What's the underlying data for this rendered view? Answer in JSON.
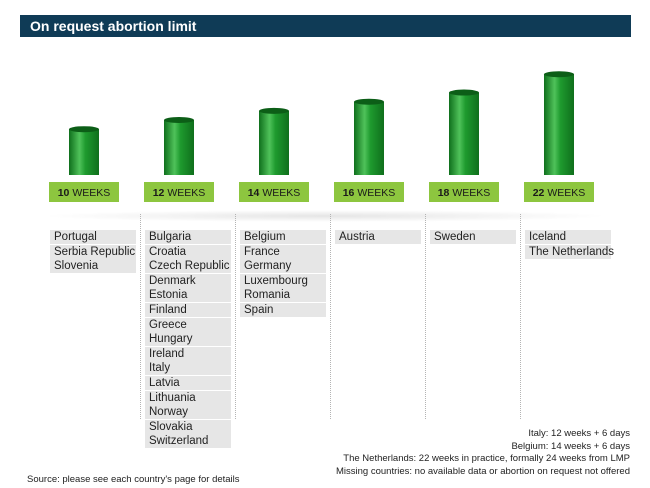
{
  "title": "On request abortion limit",
  "chart_data": {
    "type": "bar",
    "unit": "WEEKS",
    "categories": [
      "10 WEEKS",
      "12 WEEKS",
      "14 WEEKS",
      "16 WEEKS",
      "18 WEEKS",
      "22 WEEKS"
    ],
    "values": [
      10,
      12,
      14,
      16,
      18,
      22
    ],
    "value_labels": [
      "10",
      "12",
      "14",
      "16",
      "18",
      "22"
    ],
    "colors": {
      "bar": "#1e9a2e",
      "bar_light": "#4fc25a",
      "bar_dark": "#0f6f1c",
      "label_bg": "#8dc63f"
    }
  },
  "groups": [
    {
      "countries": [
        "Portugal",
        "Serbia Republic",
        "Slovenia"
      ]
    },
    {
      "countries": [
        "Bulgaria",
        "Croatia",
        "Czech Republic",
        "Denmark",
        "Estonia",
        "Finland",
        "Greece",
        "Hungary",
        "Ireland",
        "Italy",
        "Latvia",
        "Lithuania",
        "Norway",
        "Slovakia",
        "Switzerland"
      ]
    },
    {
      "countries": [
        "Belgium",
        "France",
        "Germany",
        "Luxembourg",
        "Romania",
        "Spain"
      ]
    },
    {
      "countries": [
        "Austria"
      ]
    },
    {
      "countries": [
        "Sweden"
      ]
    },
    {
      "countries": [
        "Iceland",
        "The Netherlands"
      ]
    }
  ],
  "notes": [
    "Italy: 12 weeks + 6 days",
    "Belgium: 14 weeks + 6 days",
    "The Netherlands: 22 weeks in practice, formally 24 weeks from LMP",
    "Missing countries: no available data or abortion on request not offered"
  ],
  "source": "Source: please see each country's page for details"
}
